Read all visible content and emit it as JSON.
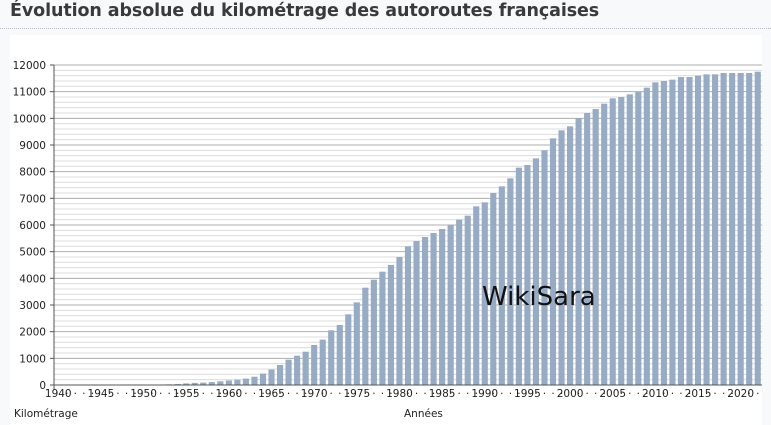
{
  "page": {
    "title": "Évolution absolue du kilométrage des autoroutes françaises",
    "ylabel": "Kilométrage",
    "xlabel": "Années",
    "watermark": "WikiSara"
  },
  "colors": {
    "bar": "#97acc4",
    "grid": "#c8c8c8",
    "axis": "#555555"
  },
  "chart_data": {
    "type": "bar",
    "xlabel": "Années",
    "ylabel": "Kilométrage",
    "ylim": [
      0,
      12000
    ],
    "yticks": [
      0,
      1000,
      2000,
      3000,
      4000,
      5000,
      6000,
      7000,
      8000,
      9000,
      10000,
      11000,
      12000
    ],
    "xtick_labels": [
      "1940",
      "1945",
      "1950",
      "1955",
      "1960",
      "1965",
      "1970",
      "1975",
      "1980",
      "1985",
      "1990",
      "1995",
      "2000",
      "2005",
      "2010",
      "2015",
      "2020"
    ],
    "grid": true,
    "x": [
      1940,
      1941,
      1942,
      1943,
      1944,
      1945,
      1946,
      1947,
      1948,
      1949,
      1950,
      1951,
      1952,
      1953,
      1954,
      1955,
      1956,
      1957,
      1958,
      1959,
      1960,
      1961,
      1962,
      1963,
      1964,
      1965,
      1966,
      1967,
      1968,
      1969,
      1970,
      1971,
      1972,
      1973,
      1974,
      1975,
      1976,
      1977,
      1978,
      1979,
      1980,
      1981,
      1982,
      1983,
      1984,
      1985,
      1986,
      1987,
      1988,
      1989,
      1990,
      1991,
      1992,
      1993,
      1994,
      1995,
      1996,
      1997,
      1998,
      1999,
      2000,
      2001,
      2002,
      2003,
      2004,
      2005,
      2006,
      2007,
      2008,
      2009,
      2010,
      2011,
      2012,
      2013,
      2014,
      2015,
      2016,
      2017,
      2018,
      2019,
      2020,
      2021,
      2022
    ],
    "values": [
      0,
      0,
      0,
      0,
      0,
      0,
      0,
      0,
      0,
      0,
      5,
      10,
      15,
      25,
      40,
      60,
      80,
      90,
      110,
      140,
      170,
      200,
      240,
      310,
      430,
      580,
      750,
      950,
      1100,
      1250,
      1500,
      1700,
      2050,
      2250,
      2650,
      3100,
      3650,
      3950,
      4250,
      4500,
      4800,
      5200,
      5400,
      5550,
      5700,
      5850,
      6000,
      6200,
      6350,
      6700,
      6850,
      7200,
      7450,
      7750,
      8150,
      8250,
      8500,
      8800,
      9250,
      9550,
      9700,
      10000,
      10200,
      10350,
      10550,
      10750,
      10800,
      10900,
      11000,
      11150,
      11350,
      11400,
      11450,
      11550,
      11550,
      11600,
      11650,
      11650,
      11700,
      11700,
      11700,
      11700,
      11750
    ]
  }
}
